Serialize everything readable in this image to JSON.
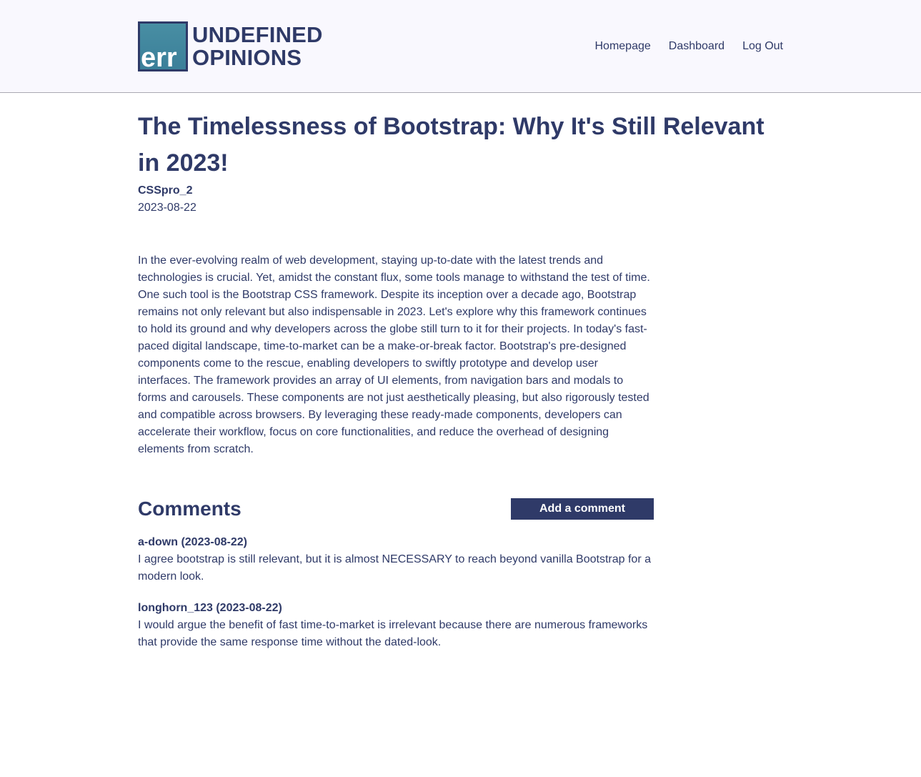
{
  "brand": {
    "logo_text": "err",
    "name_line1": "UNDEFINED",
    "name_line2": "OPINIONS"
  },
  "nav": {
    "items": [
      "Homepage",
      "Dashboard",
      "Log Out"
    ]
  },
  "post": {
    "title": "The Timelessness of Bootstrap: Why It's Still Relevant in 2023!",
    "author": "CSSpro_2",
    "date": "2023-08-22",
    "body": "In the ever-evolving realm of web development, staying up-to-date with the latest trends and technologies is crucial. Yet, amidst the constant flux, some tools manage to withstand the test of time. One such tool is the Bootstrap CSS framework. Despite its inception over a decade ago, Bootstrap remains not only relevant but also indispensable in 2023. Let's explore why this framework continues to hold its ground and why developers across the globe still turn to it for their projects. In today's fast-paced digital landscape, time-to-market can be a make-or-break factor. Bootstrap's pre-designed components come to the rescue, enabling developers to swiftly prototype and develop user interfaces. The framework provides an array of UI elements, from navigation bars and modals to forms and carousels. These components are not just aesthetically pleasing, but also rigorously tested and compatible across browsers. By leveraging these ready-made components, developers can accelerate their workflow, focus on core functionalities, and reduce the overhead of designing elements from scratch."
  },
  "comments": {
    "title": "Comments",
    "add_label": "Add a comment",
    "items": [
      {
        "meta": "a-down (2023-08-22)",
        "text": "I agree bootstrap is still relevant, but it is almost NECESSARY to reach beyond vanilla Bootstrap for a modern look."
      },
      {
        "meta": "longhorn_123 (2023-08-22)",
        "text": "I would argue the benefit of fast time-to-market is irrelevant because there are numerous frameworks that provide the same response time without the dated-look."
      }
    ]
  },
  "colors": {
    "primary": "#2f3a68",
    "header_bg": "#f9f8fe",
    "logo_teal": "#3f889f"
  }
}
